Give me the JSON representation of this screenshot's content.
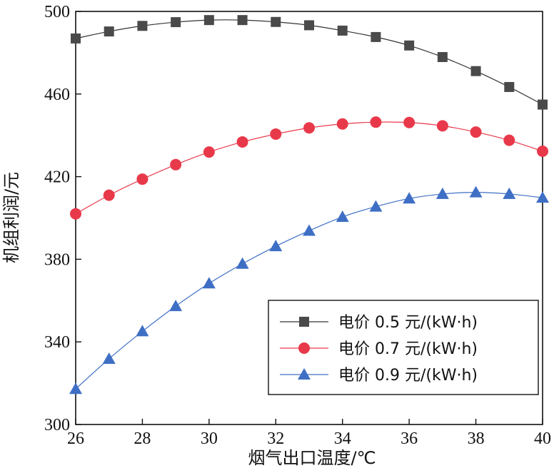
{
  "chart_data": {
    "type": "line",
    "xlabel": "烟气出口温度/℃",
    "ylabel": "机组利润/元",
    "xlim": [
      26,
      40
    ],
    "ylim": [
      300,
      500
    ],
    "xticks": [
      26,
      28,
      30,
      32,
      34,
      36,
      38,
      40
    ],
    "yticks": [
      300,
      340,
      380,
      420,
      460,
      500
    ],
    "grid": false,
    "legend_position": "bottom-right",
    "x": [
      26,
      27,
      28,
      29,
      30,
      31,
      32,
      33,
      34,
      35,
      36,
      37,
      38,
      39,
      40
    ],
    "series": [
      {
        "name": "电价 0.5 元/(kW·h)",
        "marker": "square",
        "color": "#4a4a4a",
        "line_color": "#333333",
        "values": [
          486.9,
          490.3,
          493.0,
          494.8,
          495.8,
          495.8,
          494.9,
          493.3,
          490.7,
          487.6,
          483.5,
          477.9,
          471.1,
          463.4,
          454.9
        ]
      },
      {
        "name": "电价 0.7 元/(kW·h)",
        "marker": "circle",
        "color": "#e8394a",
        "line_color": "#e8394a",
        "values": [
          402.0,
          411.0,
          418.8,
          425.8,
          431.9,
          436.8,
          440.6,
          443.6,
          445.5,
          446.4,
          446.2,
          444.6,
          441.6,
          437.6,
          432.3
        ]
      },
      {
        "name": "电价 0.9 元/(kW·h)",
        "marker": "triangle",
        "color": "#3f6fc5",
        "line_color": "#3f6fc5",
        "values": [
          317.2,
          331.8,
          345.1,
          357.3,
          368.3,
          377.8,
          386.3,
          393.8,
          400.5,
          405.5,
          409.4,
          411.6,
          412.4,
          411.6,
          409.8
        ]
      }
    ]
  }
}
